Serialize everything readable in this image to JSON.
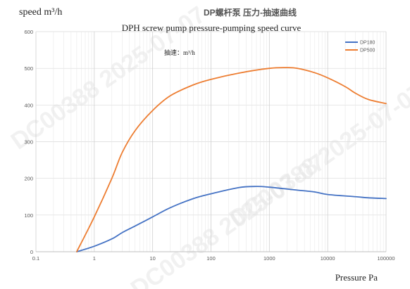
{
  "chart_data": {
    "type": "line",
    "title": "DP螺杆泵 压力-抽速曲线",
    "subtitle": "DPH screw pump pressure-pumping speed curve",
    "ylabel": "speed m³/h",
    "xlabel": "Pressure Pa",
    "annotation": "抽速：m³/h",
    "x_scale": "log",
    "xlim": [
      0.1,
      100000
    ],
    "ylim": [
      0,
      600
    ],
    "x_ticks": [
      0.1,
      1,
      10,
      100,
      1000,
      10000,
      100000
    ],
    "x_tick_labels": [
      "0.1",
      "1",
      "10",
      "100",
      "1000",
      "10000",
      "100000"
    ],
    "y_ticks": [
      0,
      100,
      200,
      300,
      400,
      500,
      600
    ],
    "y_tick_labels": [
      "0",
      "100",
      "200",
      "300",
      "400",
      "500",
      "600"
    ],
    "grid": true,
    "legend_position": "top-right",
    "series": [
      {
        "name": "DP180",
        "color": "#4472c4",
        "points": [
          [
            0.5,
            0
          ],
          [
            1,
            15
          ],
          [
            2,
            35
          ],
          [
            3,
            52
          ],
          [
            5,
            70
          ],
          [
            10,
            95
          ],
          [
            20,
            120
          ],
          [
            50,
            145
          ],
          [
            100,
            158
          ],
          [
            300,
            175
          ],
          [
            600,
            178
          ],
          [
            1000,
            176
          ],
          [
            3000,
            168
          ],
          [
            6000,
            163
          ],
          [
            10000,
            156
          ],
          [
            30000,
            150
          ],
          [
            50000,
            147
          ],
          [
            100000,
            145
          ]
        ]
      },
      {
        "name": "DP500",
        "color": "#ed7d31",
        "points": [
          [
            0.5,
            0
          ],
          [
            1,
            95
          ],
          [
            2,
            200
          ],
          [
            3,
            270
          ],
          [
            5,
            330
          ],
          [
            10,
            385
          ],
          [
            20,
            425
          ],
          [
            50,
            455
          ],
          [
            100,
            470
          ],
          [
            300,
            487
          ],
          [
            1000,
            500
          ],
          [
            2000,
            502
          ],
          [
            3000,
            500
          ],
          [
            6000,
            488
          ],
          [
            10000,
            474
          ],
          [
            20000,
            450
          ],
          [
            30000,
            432
          ],
          [
            50000,
            415
          ],
          [
            100000,
            404
          ]
        ]
      }
    ]
  },
  "watermark": {
    "text": "DC00388 2025-07-07",
    "color": "#e7e7e7"
  }
}
